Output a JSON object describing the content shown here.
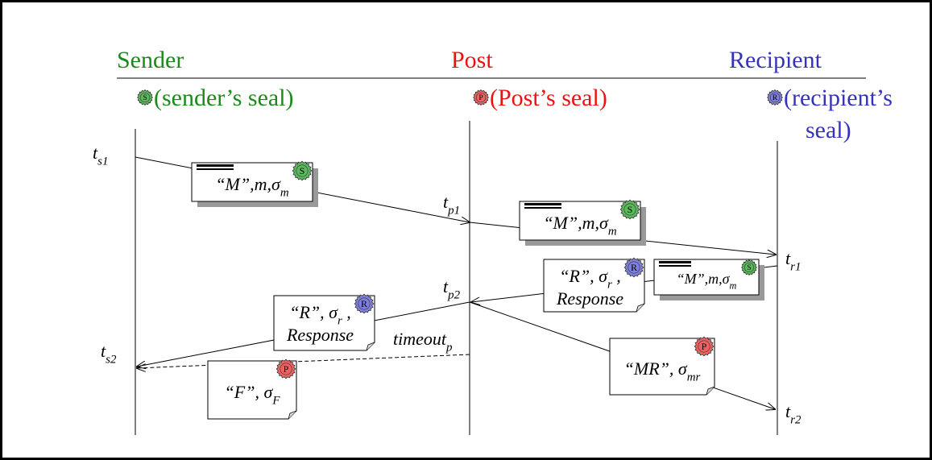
{
  "lanes": [
    {
      "name": "Sender",
      "seal": "S",
      "seal_caption": [
        "(sender’s seal)"
      ]
    },
    {
      "name": "Post",
      "seal": "P",
      "seal_caption": [
        "(Post’s seal)"
      ]
    },
    {
      "name": "Recipient",
      "seal": "R",
      "seal_caption": [
        "(recipient’s",
        "seal)"
      ]
    }
  ],
  "times": [
    {
      "base": "t",
      "sub": "s1"
    },
    {
      "base": "t",
      "sub": "p1"
    },
    {
      "base": "t",
      "sub": "r1"
    },
    {
      "base": "t",
      "sub": "p2"
    },
    {
      "base": "t",
      "sub": "s2"
    },
    {
      "base": "timeout",
      "sub": "p"
    },
    {
      "base": "t",
      "sub": "r2"
    }
  ],
  "messages": [
    {
      "line1": "“M”,m,σ",
      "sub": "m",
      "seal": "S"
    },
    {
      "line1": "“M”,m,σ",
      "sub": "m",
      "seal": "S"
    },
    {
      "line1": "“R”, σ",
      "sub": "r",
      "tail": " ,",
      "line2": "Response",
      "seal": "R"
    },
    {
      "line1": "“M”,m,σ",
      "sub": "m",
      "seal": "S"
    },
    {
      "line1": "“R”, σ",
      "sub": "r",
      "tail": " ,",
      "line2": "Response",
      "seal": "R"
    },
    {
      "line1": "“MR”, σ",
      "sub": "mr",
      "seal": "P"
    },
    {
      "line1": "“F”, σ",
      "sub": "F",
      "seal": "P"
    }
  ]
}
